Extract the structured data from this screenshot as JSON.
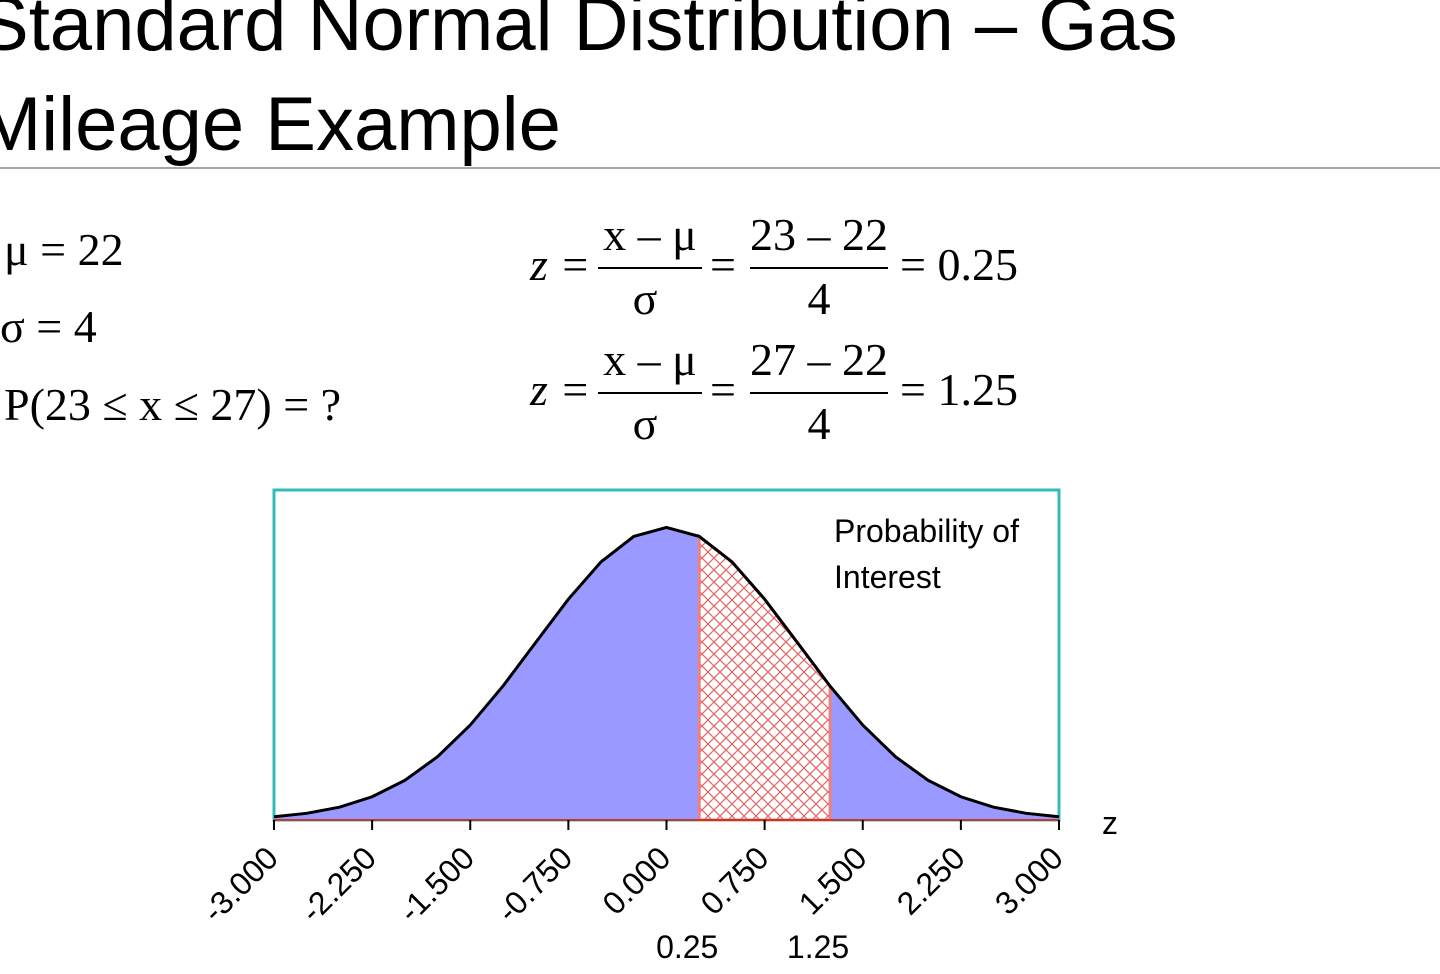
{
  "header": {
    "title": "Standard Normal Distribution – Gas Mileage Example"
  },
  "given": [
    "μ = 22",
    "σ = 4",
    "P(23 ≤ x ≤ 27) = ?"
  ],
  "formulas": [
    {
      "lhs": "z =",
      "num": "x – μ",
      "den": "σ",
      "eq": "=",
      "num2": "23 – 22",
      "den2": "4",
      "result": "= 0.25"
    },
    {
      "lhs": "z =",
      "num": "x – μ",
      "den": "σ",
      "eq": "=",
      "num2": "27 – 22",
      "den2": "4",
      "result": "= 1.25"
    }
  ],
  "chart_data": {
    "type": "area",
    "x": [
      -3,
      -2.75,
      -2.5,
      -2.25,
      -2,
      -1.75,
      -1.5,
      -1.25,
      -1,
      -0.75,
      -0.5,
      -0.25,
      0,
      0.25,
      0.5,
      0.75,
      1,
      1.25,
      1.5,
      1.75,
      2,
      2.25,
      2.5,
      2.75,
      3
    ],
    "values": [
      0.0044,
      0.0091,
      0.0175,
      0.0317,
      0.054,
      0.0863,
      0.1295,
      0.1826,
      0.242,
      0.3011,
      0.3521,
      0.3867,
      0.3989,
      0.3867,
      0.3521,
      0.3011,
      0.242,
      0.1826,
      0.1295,
      0.0863,
      0.054,
      0.0317,
      0.0175,
      0.0091,
      0.0044
    ],
    "color": "#9999ff",
    "highlight_color": "#f08080",
    "frame_color": "#33bbbb",
    "xlim": [
      -3,
      3
    ],
    "ylim": [
      0,
      0.45
    ],
    "xticks": [
      {
        "value": -3,
        "label": "-3.000"
      },
      {
        "value": -2.25,
        "label": "-2.250"
      },
      {
        "value": -1.5,
        "label": "-1.500"
      },
      {
        "value": -0.75,
        "label": "-0.750"
      },
      {
        "value": 0,
        "label": "0.000"
      },
      {
        "value": 0.75,
        "label": "0.750"
      },
      {
        "value": 1.5,
        "label": "1.500"
      },
      {
        "value": 2.25,
        "label": "2.250"
      },
      {
        "value": 3,
        "label": "3.000"
      }
    ],
    "highlight": [
      0.25,
      1.25
    ],
    "annotation": [
      "Probability of",
      "Interest"
    ],
    "x_label": "z"
  }
}
